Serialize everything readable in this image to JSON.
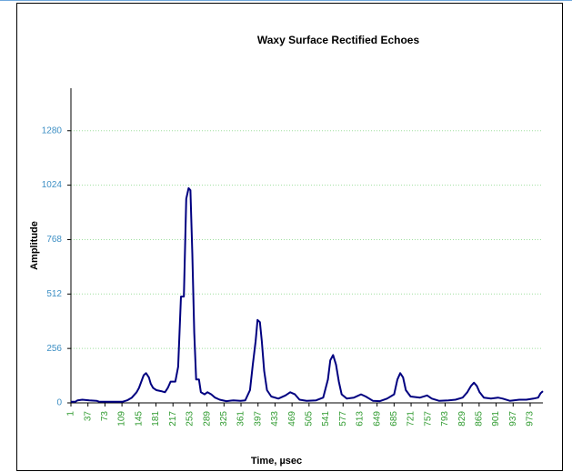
{
  "chart_data": {
    "type": "line",
    "title": "Waxy Surface Rectified Echoes",
    "x_label": "Time, µsec",
    "y_label": "Amplitude",
    "color": "#000080",
    "grid": true,
    "xlim": [
      1,
      1000
    ],
    "ylim": [
      0,
      1480
    ],
    "xticks": [
      1,
      37,
      73,
      109,
      145,
      181,
      217,
      253,
      289,
      325,
      361,
      397,
      433,
      469,
      505,
      541,
      577,
      613,
      649,
      685,
      721,
      757,
      793,
      829,
      865,
      901,
      937,
      973
    ],
    "yticks": [
      0,
      256,
      512,
      768,
      1024,
      1280
    ],
    "x": [
      1,
      10,
      15,
      25,
      40,
      55,
      60,
      80,
      110,
      120,
      130,
      140,
      145,
      150,
      155,
      160,
      166,
      170,
      175,
      182,
      192,
      200,
      206,
      212,
      222,
      228,
      234,
      240,
      245,
      250,
      254,
      258,
      262,
      266,
      272,
      276,
      284,
      290,
      298,
      306,
      316,
      330,
      345,
      360,
      370,
      380,
      386,
      392,
      396,
      401,
      405,
      410,
      416,
      425,
      440,
      455,
      465,
      475,
      485,
      500,
      520,
      535,
      545,
      550,
      556,
      562,
      568,
      574,
      585,
      600,
      615,
      625,
      640,
      655,
      670,
      685,
      692,
      698,
      704,
      710,
      720,
      740,
      755,
      765,
      780,
      800,
      815,
      830,
      840,
      848,
      854,
      860,
      866,
      875,
      890,
      905,
      915,
      930,
      950,
      965,
      980,
      990,
      995,
      1000
    ],
    "values": [
      5,
      5,
      12,
      15,
      12,
      10,
      6,
      5,
      5,
      12,
      25,
      50,
      70,
      100,
      130,
      140,
      120,
      90,
      70,
      60,
      55,
      50,
      70,
      100,
      100,
      170,
      500,
      500,
      960,
      1010,
      1000,
      700,
      330,
      110,
      110,
      50,
      40,
      50,
      40,
      25,
      15,
      8,
      12,
      10,
      12,
      60,
      180,
      290,
      390,
      380,
      290,
      150,
      60,
      30,
      20,
      35,
      50,
      40,
      15,
      10,
      12,
      25,
      110,
      200,
      225,
      180,
      100,
      40,
      20,
      25,
      40,
      30,
      10,
      8,
      20,
      40,
      110,
      140,
      120,
      60,
      30,
      25,
      35,
      20,
      10,
      12,
      15,
      25,
      50,
      80,
      95,
      80,
      50,
      25,
      20,
      25,
      20,
      10,
      15,
      15,
      20,
      25,
      45,
      55
    ]
  }
}
